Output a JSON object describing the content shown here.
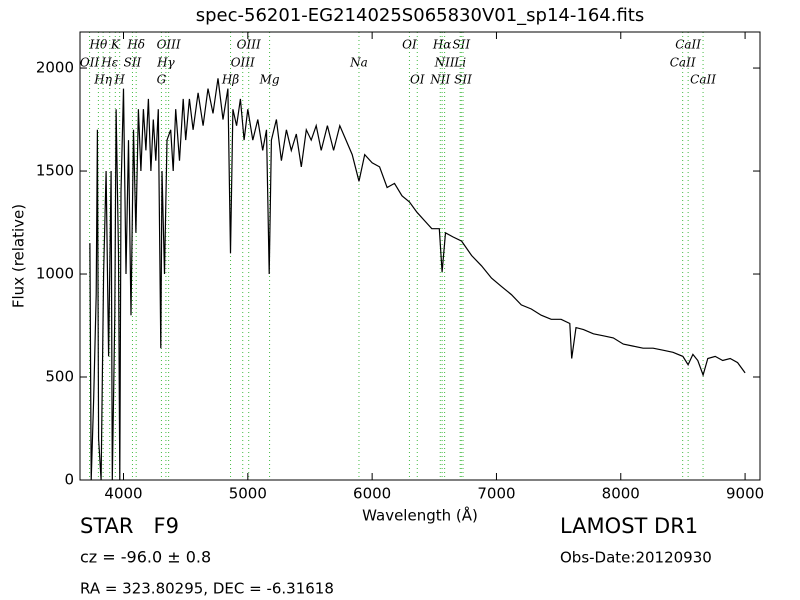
{
  "chart_data": {
    "type": "line",
    "title": "spec-56201-EG214025S065830V01_sp14-164.fits",
    "x_label": "Wavelength (Å)",
    "y_label": "Flux (relative)",
    "xlim": [
      3650,
      9120
    ],
    "ylim": [
      0,
      2175
    ],
    "xticks": [
      4000,
      5000,
      6000,
      7000,
      8000,
      9000
    ],
    "yticks": [
      0,
      500,
      1000,
      1500,
      2000
    ],
    "color": "#000000",
    "line_color": "#44bb44",
    "x": [
      3730,
      3740,
      3760,
      3780,
      3790,
      3800,
      3820,
      3840,
      3860,
      3880,
      3900,
      3910,
      3930,
      3940,
      3960,
      3970,
      3980,
      4000,
      4020,
      4040,
      4060,
      4080,
      4100,
      4120,
      4140,
      4160,
      4180,
      4200,
      4220,
      4240,
      4260,
      4280,
      4300,
      4310,
      4330,
      4350,
      4380,
      4400,
      4420,
      4450,
      4480,
      4500,
      4530,
      4560,
      4600,
      4640,
      4680,
      4720,
      4760,
      4800,
      4840,
      4861,
      4880,
      4910,
      4940,
      4970,
      5000,
      5040,
      5080,
      5120,
      5150,
      5172,
      5190,
      5230,
      5270,
      5310,
      5350,
      5390,
      5430,
      5470,
      5510,
      5550,
      5590,
      5640,
      5690,
      5740,
      5790,
      5840,
      5894,
      5940,
      6000,
      6060,
      6120,
      6180,
      6240,
      6300,
      6360,
      6420,
      6480,
      6540,
      6563,
      6590,
      6650,
      6720,
      6800,
      6880,
      6960,
      7040,
      7120,
      7200,
      7280,
      7360,
      7440,
      7520,
      7590,
      7605,
      7640,
      7700,
      7780,
      7860,
      7940,
      8020,
      8100,
      8180,
      8260,
      8340,
      8420,
      8500,
      8542,
      8580,
      8620,
      8662,
      8700,
      8760,
      8820,
      8880,
      8940,
      9000
    ],
    "values": [
      1150,
      0,
      400,
      900,
      1700,
      200,
      0,
      1000,
      1500,
      600,
      1500,
      0,
      800,
      1800,
      1100,
      0,
      1400,
      1900,
      1000,
      1650,
      800,
      1700,
      1200,
      1800,
      1500,
      1800,
      1600,
      1850,
      1500,
      1750,
      1550,
      1800,
      640,
      1500,
      1000,
      1650,
      1700,
      1500,
      1800,
      1550,
      1850,
      1650,
      1850,
      1700,
      1880,
      1720,
      1900,
      1780,
      1950,
      1750,
      1900,
      1100,
      1800,
      1720,
      1850,
      1650,
      1800,
      1650,
      1750,
      1600,
      1700,
      1000,
      1650,
      1750,
      1550,
      1700,
      1600,
      1680,
      1520,
      1700,
      1650,
      1720,
      1600,
      1720,
      1600,
      1720,
      1650,
      1580,
      1450,
      1580,
      1540,
      1520,
      1420,
      1440,
      1380,
      1350,
      1300,
      1260,
      1220,
      1220,
      1010,
      1200,
      1180,
      1160,
      1090,
      1040,
      980,
      940,
      900,
      850,
      830,
      800,
      780,
      780,
      760,
      590,
      740,
      730,
      710,
      700,
      690,
      660,
      650,
      640,
      640,
      630,
      620,
      600,
      560,
      610,
      580,
      510,
      590,
      600,
      580,
      590,
      570,
      520
    ],
    "line_labels": [
      [
        {
          "label": "Hθ",
          "x": 3798
        },
        {
          "label": "K",
          "x": 3934
        },
        {
          "label": "Hδ",
          "x": 4102
        },
        {
          "label": "OIII",
          "x": 4363
        },
        {
          "label": "OIII",
          "x": 5007
        },
        {
          "label": "OI",
          "x": 6300
        },
        {
          "label": "Hα",
          "x": 6563
        },
        {
          "label": "SII",
          "x": 6717
        },
        {
          "label": "CaII",
          "x": 8542
        }
      ],
      [
        {
          "label": "OII",
          "x": 3727
        },
        {
          "label": "Hε",
          "x": 3889
        },
        {
          "label": "SII",
          "x": 4072
        },
        {
          "label": "Hγ",
          "x": 4341
        },
        {
          "label": "OIII",
          "x": 4959
        },
        {
          "label": "Na",
          "x": 5894
        },
        {
          "label": "NII",
          "x": 6583
        },
        {
          "label": "Li",
          "x": 6708
        },
        {
          "label": "CaII",
          "x": 8498
        }
      ],
      [
        {
          "label": "Hη",
          "x": 3836
        },
        {
          "label": "H",
          "x": 3969
        },
        {
          "label": "G",
          "x": 4305
        },
        {
          "label": "Hβ",
          "x": 4861
        },
        {
          "label": "Mg",
          "x": 5175
        },
        {
          "label": "OI",
          "x": 6363
        },
        {
          "label": "NII",
          "x": 6548
        },
        {
          "label": "SII",
          "x": 6731
        },
        {
          "label": "CaII",
          "x": 8662
        }
      ]
    ]
  },
  "footer": {
    "object": "STAR   F9",
    "cz": "cz = -96.0 ± 0.8",
    "coords": "RA = 323.80295, DEC = -6.31618",
    "survey": "LAMOST DR1",
    "obs_date": "Obs-Date:20120930"
  }
}
